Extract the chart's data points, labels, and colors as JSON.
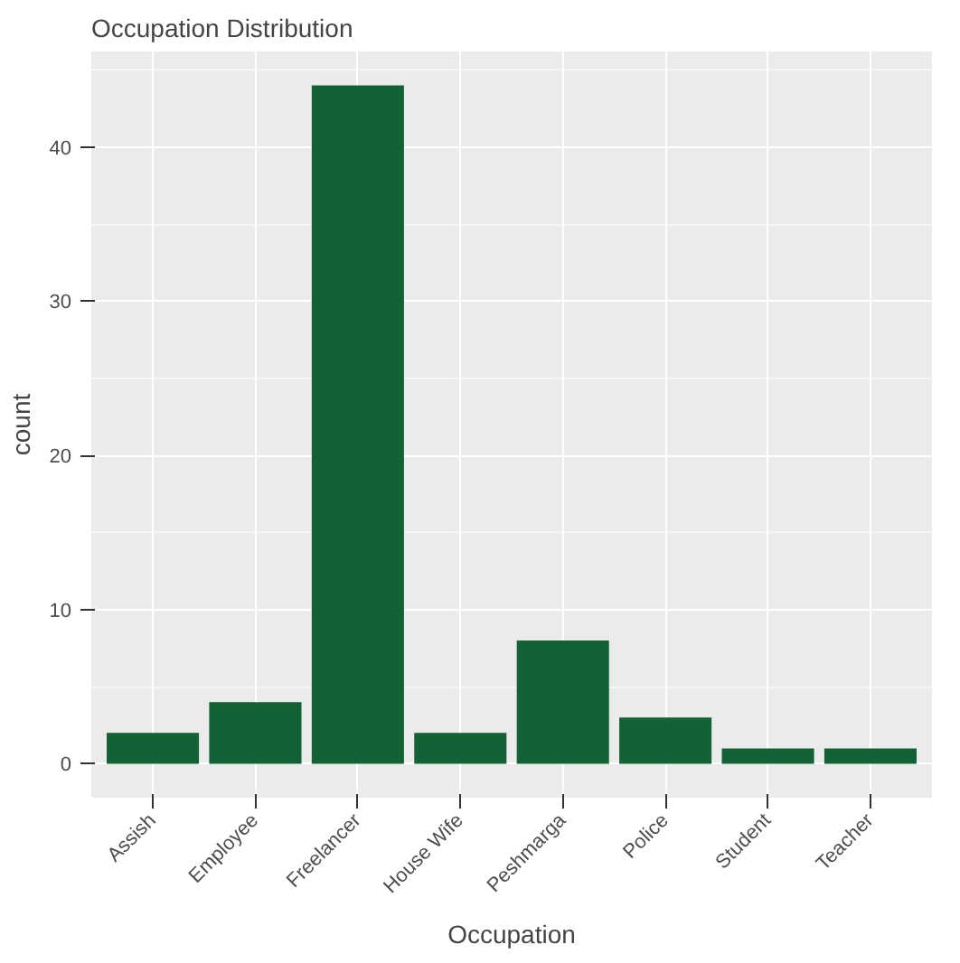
{
  "chart_data": {
    "type": "bar",
    "title": "Occupation Distribution",
    "xlabel": "Occupation",
    "ylabel": "count",
    "categories": [
      "Assish",
      "Employee",
      "Freelancer",
      "House Wife",
      "Peshmarga",
      "Police",
      "Student",
      "Teacher"
    ],
    "values": [
      2,
      4,
      44,
      2,
      8,
      3,
      1,
      1
    ],
    "color": "#136235",
    "ylim": [
      -2.2,
      46.2
    ],
    "yticks": [
      0,
      10,
      20,
      30,
      40
    ],
    "grid": true
  }
}
